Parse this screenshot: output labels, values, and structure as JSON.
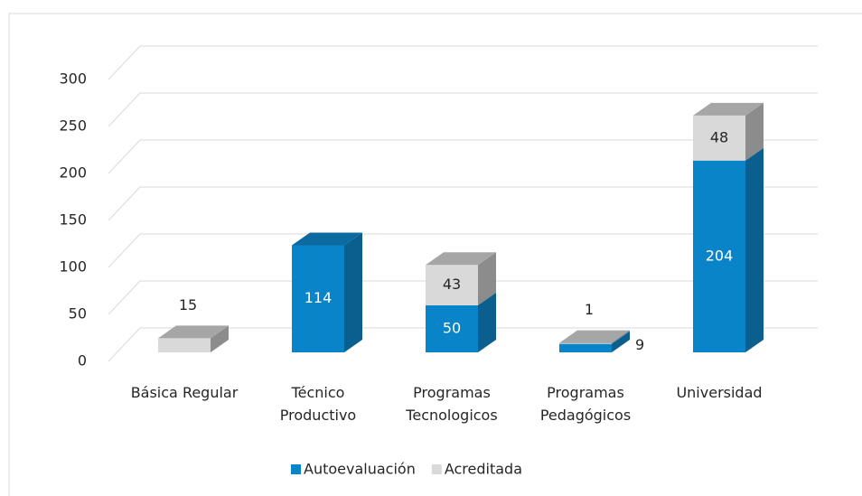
{
  "chart_data": {
    "type": "bar3d_stacked",
    "categories": [
      "Básica Regular",
      "Técnico Productivo",
      "Programas Tecnologicos",
      "Programas Pedagógicos",
      "Universidad"
    ],
    "series": [
      {
        "name": "Autoevaluación",
        "color": "#0a84c8",
        "values": [
          0,
          114,
          50,
          9,
          204
        ]
      },
      {
        "name": "Acreditada",
        "color": "#d9d9d9",
        "values": [
          15,
          0,
          43,
          1,
          48
        ]
      }
    ],
    "ylim": [
      0,
      300
    ],
    "yticks": [
      0,
      50,
      100,
      150,
      200,
      250,
      300
    ],
    "grid": true,
    "legend": "bottom"
  }
}
